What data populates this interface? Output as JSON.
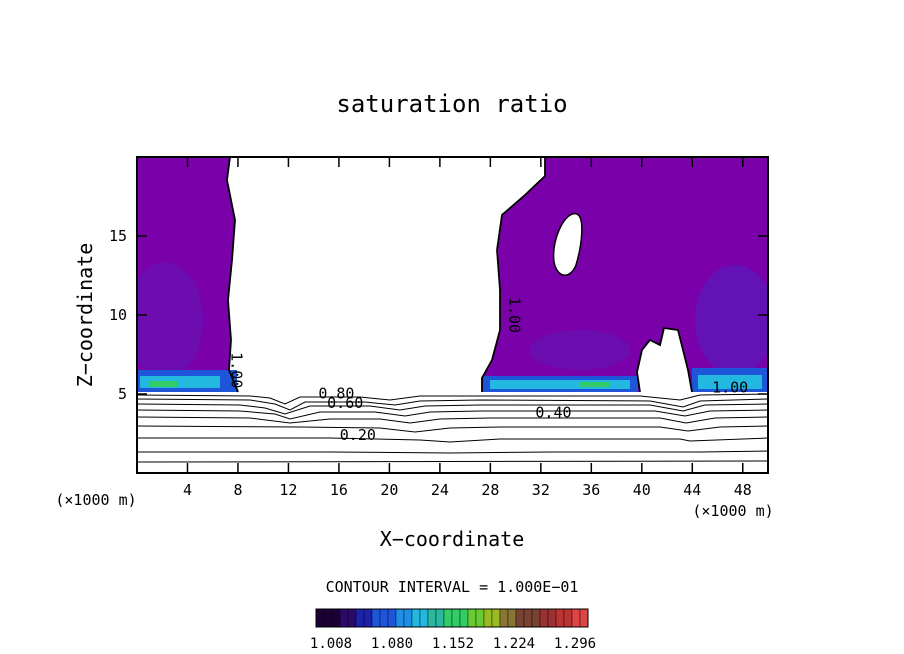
{
  "chart_data": {
    "type": "contour",
    "title": "saturation ratio",
    "xlabel": "X−coordinate",
    "ylabel": "Z−coordinate",
    "x_unit_left": "(×1000 m)",
    "x_unit_right": "(×1000 m)",
    "xlim": [
      0,
      50
    ],
    "ylim": [
      0,
      20
    ],
    "x_ticks": [
      4,
      8,
      12,
      16,
      20,
      24,
      28,
      32,
      36,
      40,
      44,
      48
    ],
    "y_ticks": [
      5,
      10,
      15
    ],
    "x_tick_labels": [
      "4",
      "8",
      "12",
      "16",
      "20",
      "24",
      "28",
      "32",
      "36",
      "40",
      "44",
      "48"
    ],
    "y_tick_labels": [
      "5",
      "10",
      "15"
    ],
    "contour_interval_text": "CONTOUR INTERVAL = 1.000E−01",
    "contour_levels": [
      0.1,
      0.2,
      0.3,
      0.4,
      0.5,
      0.6,
      0.7,
      0.8,
      0.9,
      1.0
    ],
    "contour_labels": [
      {
        "text": "0.20",
        "x": 17.5,
        "y": 2.1
      },
      {
        "text": "0.40",
        "x": 33,
        "y": 3.5
      },
      {
        "text": "0.60",
        "x": 16.5,
        "y": 4.1
      },
      {
        "text": "0.80",
        "x": 15.8,
        "y": 4.7
      },
      {
        "text": "1.00",
        "x": 7.5,
        "y": 6.5,
        "rotate": 90
      },
      {
        "text": "1.00",
        "x": 29.5,
        "y": 10,
        "rotate": 90
      },
      {
        "text": "1.00",
        "x": 47,
        "y": 5.1
      }
    ],
    "fill_regions": [
      {
        "name": "left supersaturated column",
        "x": [
          0,
          8
        ],
        "y": [
          5,
          20
        ]
      },
      {
        "name": "right supersaturated column",
        "x": [
          27.5,
          50
        ],
        "y": [
          5,
          20
        ]
      },
      {
        "name": "clear hole",
        "x": [
          32.8,
          35.2
        ],
        "y": [
          12.5,
          17
        ]
      }
    ],
    "colorbar": {
      "ticks": [
        "1.008",
        "1.080",
        "1.152",
        "1.224",
        "1.296"
      ],
      "colors": [
        "#1a0033",
        "#2a0a66",
        "#1e22a8",
        "#1f55d8",
        "#1f8ee8",
        "#22b8e0",
        "#2ab8a0",
        "#33cc66",
        "#66cc33",
        "#99bb22",
        "#887733",
        "#774433",
        "#993333",
        "#bb3333",
        "#dd4444"
      ]
    }
  }
}
